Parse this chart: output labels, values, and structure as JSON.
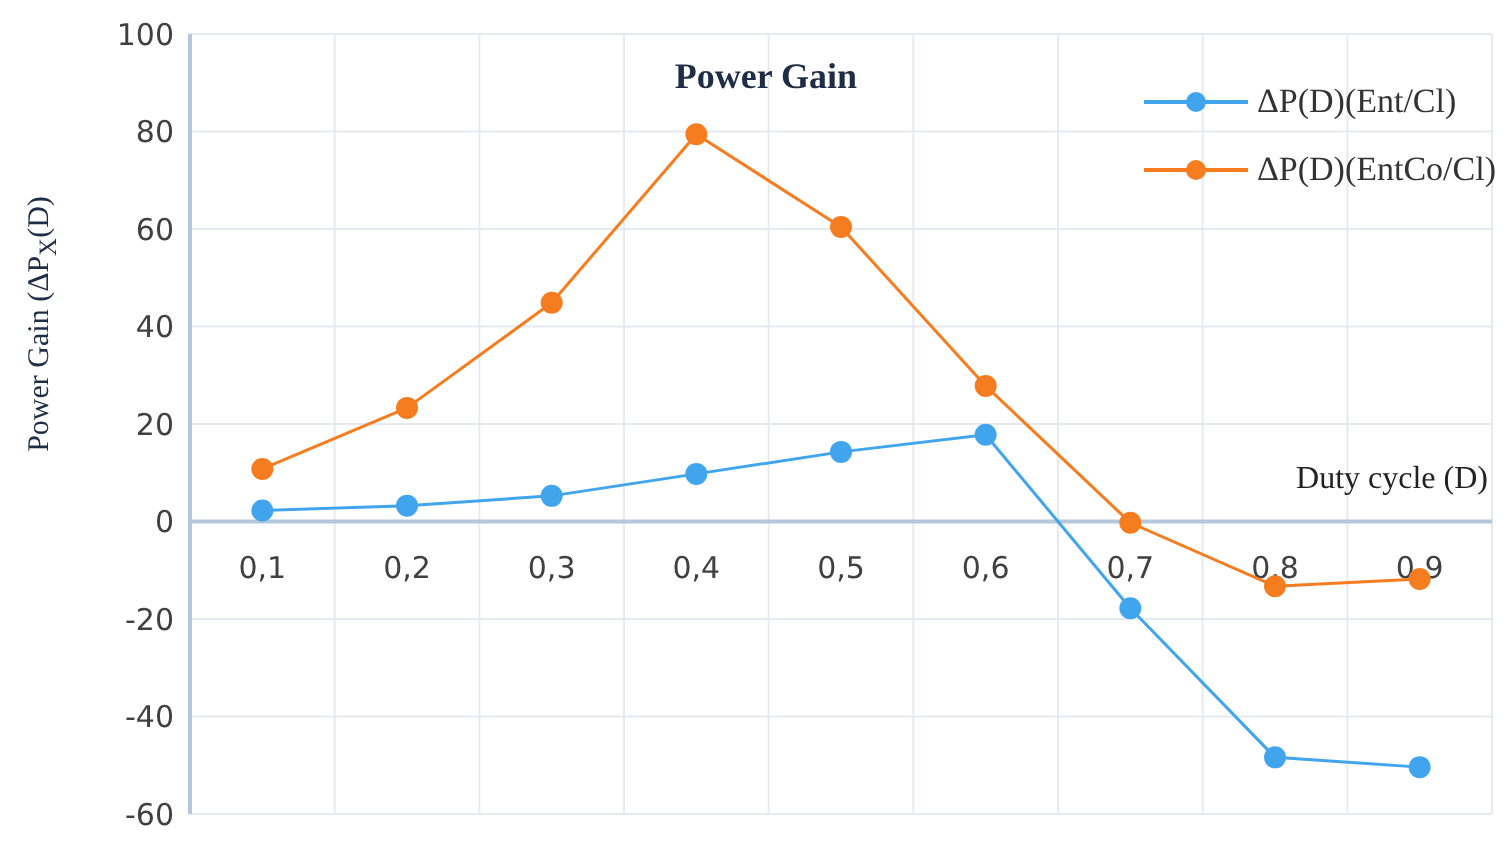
{
  "chart_data": {
    "type": "line",
    "title": "Power Gain",
    "xlabel": "Duty cycle (D)",
    "ylabel": "Power Gain  (ΔP$_{X}$(D)",
    "categories": [
      "0,1",
      "0,2",
      "0,3",
      "0,4",
      "0,5",
      "0,6",
      "0,7",
      "0,8",
      "0,9"
    ],
    "series": [
      {
        "name": "ΔP(D)(Ent/Cl)",
        "color": "#41a5ee",
        "values": [
          2.5,
          3.5,
          5.5,
          10,
          14.5,
          18,
          -17.5,
          -48,
          -50
        ]
      },
      {
        "name": "ΔP(D)(EntCo/Cl)",
        "color": "#f57c1f",
        "values": [
          11,
          23.5,
          45,
          79.5,
          60.5,
          28,
          0,
          -13,
          -11.5
        ]
      }
    ],
    "ylim": [
      -60,
      100
    ],
    "yticks": [
      -60,
      -40,
      -20,
      0,
      20,
      40,
      60,
      80,
      100
    ],
    "grid": true,
    "legend": "top right",
    "marker": "circle",
    "line_style": "solid"
  }
}
